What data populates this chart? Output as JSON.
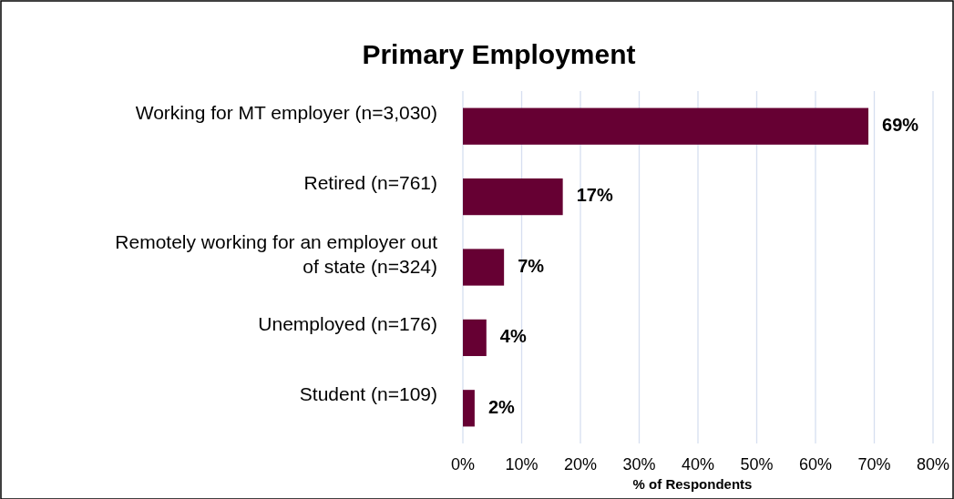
{
  "chart_data": {
    "type": "bar",
    "orientation": "horizontal",
    "title": "Primary Employment",
    "xlabel": "% of Respondents",
    "categories": [
      "Working for MT employer (n=3,030)",
      "Retired (n=761)",
      "Remotely working for an employer out of state (n=324)",
      "Unemployed (n=176)",
      "Student (n=109)"
    ],
    "values": [
      69,
      17,
      7,
      4,
      2
    ],
    "color": "#660033",
    "xlim": [
      0,
      80
    ],
    "xticks": [
      {
        "value": 0,
        "label": "0%"
      },
      {
        "value": 10,
        "label": "10%"
      },
      {
        "value": 20,
        "label": "20%"
      },
      {
        "value": 30,
        "label": "30%"
      },
      {
        "value": 40,
        "label": "40%"
      },
      {
        "value": 50,
        "label": "50%"
      },
      {
        "value": 60,
        "label": "60%"
      },
      {
        "value": 70,
        "label": "70%"
      },
      {
        "value": 80,
        "label": "80%"
      }
    ],
    "grid": "x",
    "data_labels": true,
    "value_labels": [
      "69%",
      "17%",
      "7%",
      "4%",
      "2%"
    ]
  }
}
